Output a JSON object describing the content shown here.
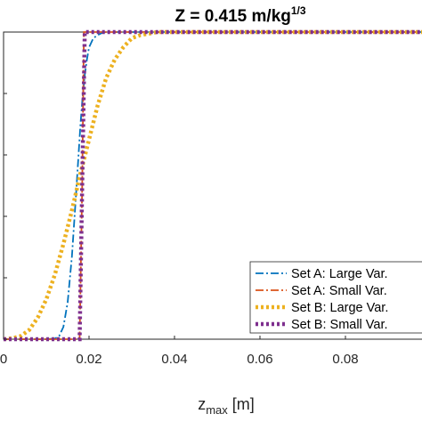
{
  "chart_data": {
    "type": "line",
    "title_main": "Z = 0.415 m/kg",
    "title_sup": "1/3",
    "xlabel_main": "z",
    "xlabel_sub": "max",
    "xlabel_unit": " [m]",
    "ylabel": "",
    "xlim": [
      0,
      0.1
    ],
    "ylim": [
      0,
      1
    ],
    "xticks": [
      0,
      0.02,
      0.04,
      0.06,
      0.08
    ],
    "xtick_labels": [
      "0",
      "0.02",
      "0.04",
      "0.06",
      "0.08"
    ],
    "yticks": [
      0,
      0.2,
      0.4,
      0.6,
      0.8,
      1
    ],
    "grid": false,
    "legend_position": "bottom-right",
    "series": [
      {
        "name": "Set A: Large Var.",
        "color": "#0072BD",
        "style": "dashdot",
        "x": [
          0,
          0.01,
          0.012,
          0.013,
          0.014,
          0.015,
          0.016,
          0.017,
          0.0175,
          0.018,
          0.0185,
          0.019,
          0.0195,
          0.02,
          0.021,
          0.022,
          0.023,
          0.024,
          0.025,
          0.027,
          0.03,
          0.1
        ],
        "y": [
          0,
          0,
          0.002,
          0.01,
          0.04,
          0.12,
          0.27,
          0.48,
          0.59,
          0.7,
          0.79,
          0.86,
          0.91,
          0.95,
          0.98,
          0.99,
          0.997,
          1,
          1,
          1,
          1,
          1
        ]
      },
      {
        "name": "Set A: Small Var.",
        "color": "#D95319",
        "style": "dashdot",
        "x": [
          0,
          0.0178,
          0.0184,
          0.0188,
          0.1
        ],
        "y": [
          0,
          0,
          0.5,
          1,
          1
        ]
      },
      {
        "name": "Set B: Large Var.",
        "color": "#EDB120",
        "style": "dotted",
        "x": [
          0,
          0.002,
          0.004,
          0.006,
          0.008,
          0.01,
          0.012,
          0.014,
          0.016,
          0.018,
          0.02,
          0.022,
          0.024,
          0.026,
          0.028,
          0.03,
          0.032,
          0.034,
          0.036,
          0.04,
          0.045,
          0.1
        ],
        "y": [
          0,
          0.003,
          0.01,
          0.03,
          0.07,
          0.13,
          0.21,
          0.31,
          0.42,
          0.54,
          0.65,
          0.76,
          0.85,
          0.91,
          0.95,
          0.98,
          0.99,
          0.995,
          1,
          1,
          1,
          1
        ]
      },
      {
        "name": "Set B: Small Var.",
        "color": "#7E2F8E",
        "style": "dotted",
        "x": [
          0,
          0.0178,
          0.0184,
          0.019,
          0.1
        ],
        "y": [
          0,
          0,
          0.5,
          1,
          1
        ]
      }
    ]
  }
}
